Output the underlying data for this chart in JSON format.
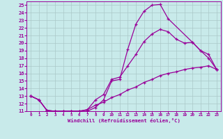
{
  "xlabel": "Windchill (Refroidissement éolien,°C)",
  "bg_color": "#c8eaea",
  "grid_color": "#aac8c8",
  "line_color": "#990099",
  "xlim": [
    -0.5,
    23.5
  ],
  "ylim": [
    11,
    25.5
  ],
  "xticks": [
    0,
    1,
    2,
    3,
    4,
    5,
    6,
    7,
    8,
    9,
    10,
    11,
    12,
    13,
    14,
    15,
    16,
    17,
    18,
    19,
    20,
    21,
    22,
    23
  ],
  "yticks": [
    11,
    12,
    13,
    14,
    15,
    16,
    17,
    18,
    19,
    20,
    21,
    22,
    23,
    24,
    25
  ],
  "curve1_x": [
    0,
    1,
    2,
    3,
    4,
    5,
    6,
    7,
    8,
    9,
    10,
    11,
    12,
    13,
    14,
    15,
    16,
    17,
    20,
    21,
    22,
    23
  ],
  "curve1_y": [
    13.0,
    12.5,
    11.1,
    11.0,
    11.0,
    11.0,
    11.0,
    11.0,
    11.5,
    12.5,
    15.0,
    15.2,
    19.2,
    22.5,
    24.2,
    25.0,
    25.1,
    23.2,
    20.1,
    19.0,
    18.0,
    16.5
  ],
  "curve2_x": [
    0,
    1,
    2,
    3,
    4,
    5,
    6,
    7,
    8,
    9,
    10,
    11,
    12,
    13,
    14,
    15,
    16,
    17,
    18,
    19,
    20,
    21,
    22,
    23
  ],
  "curve2_y": [
    13.0,
    12.5,
    11.1,
    11.0,
    11.0,
    11.0,
    11.0,
    11.2,
    12.5,
    13.2,
    15.2,
    15.5,
    17.0,
    18.5,
    20.2,
    21.2,
    21.8,
    21.5,
    20.5,
    20.0,
    20.1,
    19.0,
    18.5,
    16.5
  ],
  "curve3_x": [
    0,
    1,
    2,
    3,
    4,
    5,
    6,
    7,
    8,
    9,
    10,
    11,
    12,
    13,
    14,
    15,
    16,
    17,
    18,
    19,
    20,
    21,
    22,
    23
  ],
  "curve3_y": [
    13.0,
    12.5,
    11.1,
    11.0,
    11.0,
    11.0,
    11.0,
    11.2,
    11.8,
    12.2,
    12.8,
    13.2,
    13.8,
    14.2,
    14.8,
    15.2,
    15.7,
    16.0,
    16.2,
    16.5,
    16.7,
    16.8,
    17.0,
    16.5
  ]
}
